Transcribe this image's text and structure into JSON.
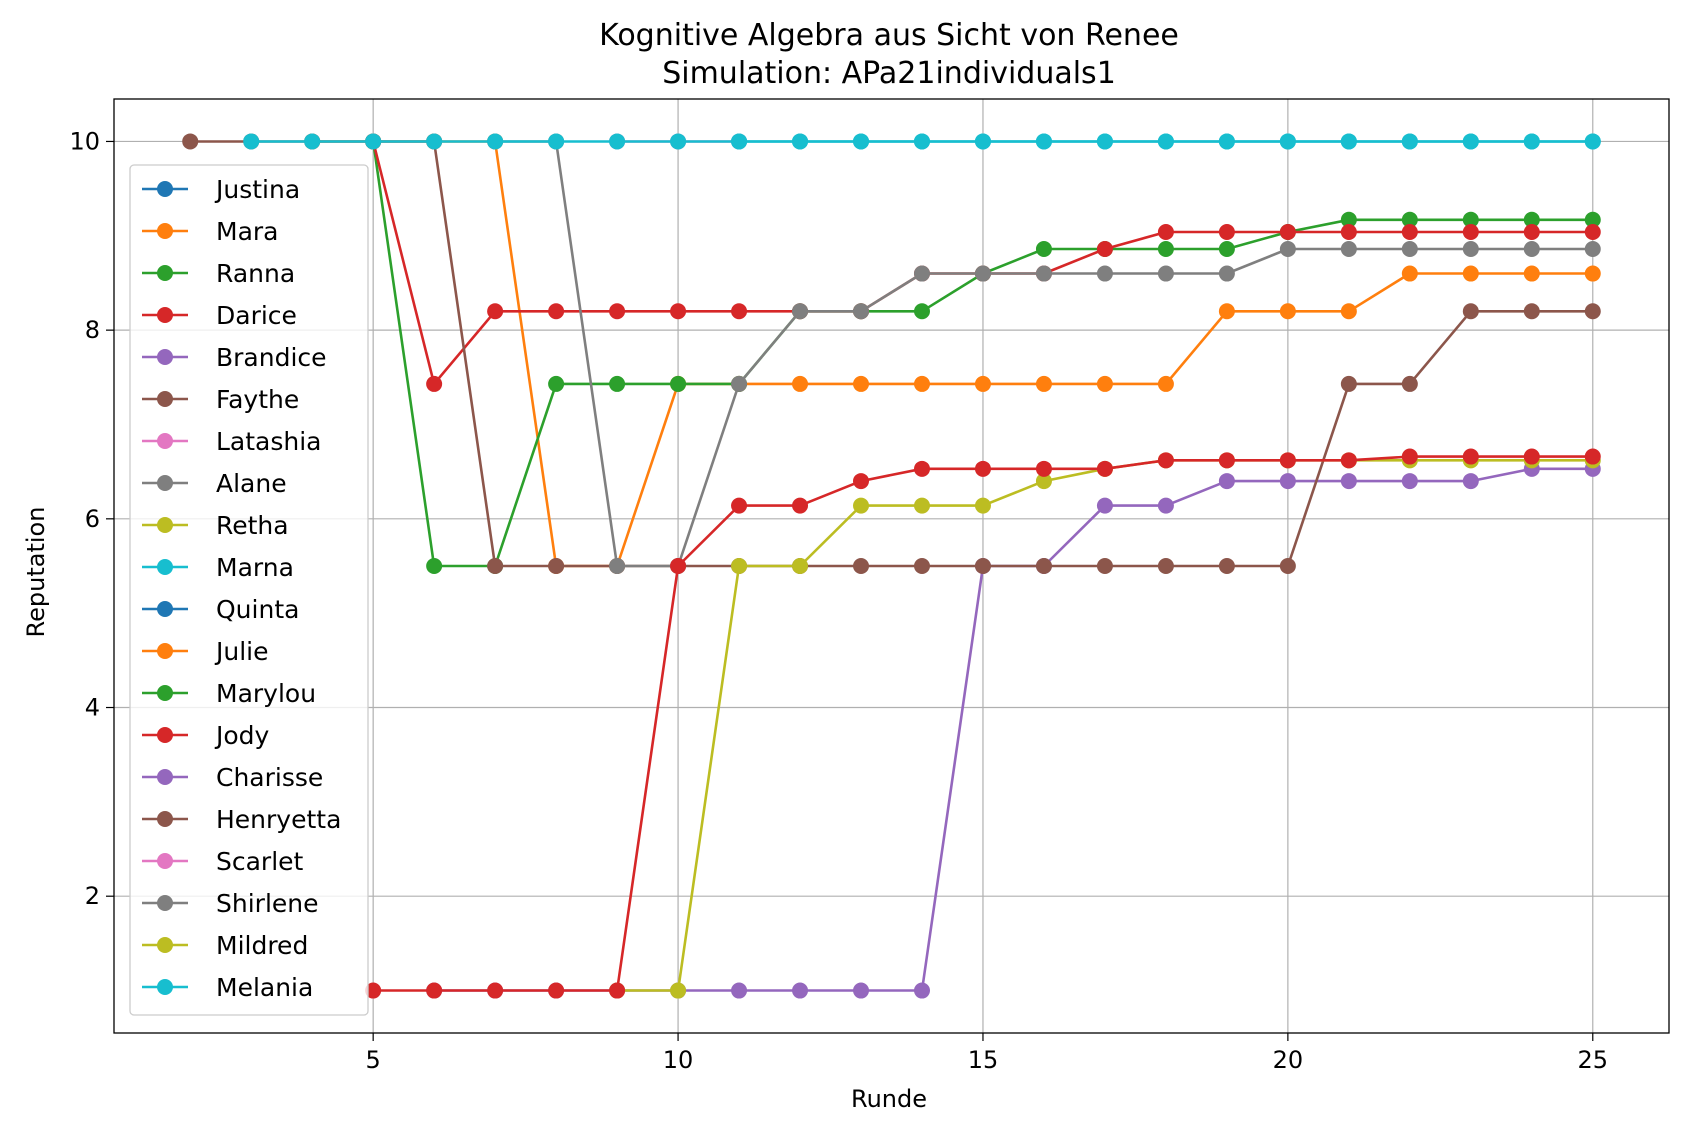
{
  "chart_data": {
    "type": "line",
    "title": "Kognitive Algebra aus Sicht von Renee",
    "subtitle": "Simulation: APa21individuals1",
    "xlabel": "Runde",
    "ylabel": "Reputation",
    "xlim": [
      0.75,
      26.25
    ],
    "ylim": [
      0.55,
      10.45
    ],
    "xticks": [
      5,
      10,
      15,
      20,
      25
    ],
    "yticks": [
      2,
      4,
      6,
      8,
      10
    ],
    "grid": true,
    "legend_position": "left",
    "series": [
      {
        "name": "Justina",
        "color": "#1f77b4",
        "x": [],
        "y": []
      },
      {
        "name": "Mara",
        "color": "#ff7f0e",
        "x": [
          4,
          5,
          6,
          7,
          8,
          9,
          10,
          11,
          12,
          13,
          14,
          15,
          16,
          17,
          18,
          19,
          20,
          21,
          22,
          23,
          24,
          25
        ],
        "y": [
          10,
          10,
          10,
          10,
          5.5,
          5.5,
          7.43,
          7.43,
          7.43,
          7.43,
          7.43,
          7.43,
          7.43,
          7.43,
          7.43,
          8.2,
          8.2,
          8.2,
          8.6,
          8.6,
          8.6,
          8.6
        ]
      },
      {
        "name": "Ranna",
        "color": "#2ca02c",
        "x": [
          5,
          6,
          7,
          8,
          9,
          10,
          11,
          12,
          13,
          14,
          15,
          16,
          17,
          18,
          19,
          20,
          21,
          22,
          23,
          24,
          25
        ],
        "y": [
          10,
          5.5,
          5.5,
          7.43,
          7.43,
          7.43,
          7.43,
          8.2,
          8.2,
          8.2,
          8.6,
          8.86,
          8.86,
          8.86,
          8.86,
          9.04,
          9.17,
          9.17,
          9.17,
          9.17,
          9.17
        ]
      },
      {
        "name": "Darice",
        "color": "#d62728",
        "x": [
          5,
          6,
          7,
          8,
          9,
          10,
          11,
          12,
          13,
          14,
          15,
          16,
          17,
          18,
          19,
          20,
          21,
          22,
          23,
          24,
          25
        ],
        "y": [
          10,
          7.43,
          8.2,
          8.2,
          8.2,
          8.2,
          8.2,
          8.2,
          8.2,
          8.6,
          8.6,
          8.6,
          8.86,
          9.04,
          9.04,
          9.04,
          9.04,
          9.04,
          9.04,
          9.04,
          9.04
        ]
      },
      {
        "name": "Brandice",
        "color": "#9467bd",
        "x": [
          6,
          7,
          8,
          9,
          10,
          11,
          12,
          13,
          14,
          15,
          16,
          17,
          18,
          19,
          20,
          21,
          22,
          23,
          24,
          25
        ],
        "y": [
          1,
          1,
          1,
          1,
          1,
          1,
          1,
          1,
          1,
          5.5,
          5.5,
          6.14,
          6.14,
          6.4,
          6.4,
          6.4,
          6.4,
          6.4,
          6.53,
          6.53
        ]
      },
      {
        "name": "Faythe",
        "color": "#8c564b",
        "x": [
          2,
          3,
          4,
          5,
          6,
          7,
          8,
          9,
          10,
          11,
          12,
          13,
          14,
          15,
          16,
          17,
          18,
          19,
          20,
          21,
          22,
          23,
          24,
          25
        ],
        "y": [
          10,
          10,
          10,
          10,
          10,
          5.5,
          5.5,
          5.5,
          5.5,
          5.5,
          5.5,
          5.5,
          5.5,
          5.5,
          5.5,
          5.5,
          5.5,
          5.5,
          5.5,
          7.43,
          7.43,
          8.2,
          8.2,
          8.2
        ]
      },
      {
        "name": "Latashia",
        "color": "#e377c2",
        "x": [
          9,
          10,
          11
        ],
        "y": [
          10,
          10,
          10
        ]
      },
      {
        "name": "Alane",
        "color": "#7f7f7f",
        "x": [
          7,
          8,
          9,
          10,
          11,
          12,
          13,
          14,
          15,
          16,
          17,
          18,
          19,
          20,
          21,
          22,
          23,
          24,
          25
        ],
        "y": [
          10,
          10,
          5.5,
          5.5,
          7.43,
          8.2,
          8.2,
          8.6,
          8.6,
          8.6,
          8.6,
          8.6,
          8.6,
          8.86,
          8.86,
          8.86,
          8.86,
          8.86,
          8.86
        ]
      },
      {
        "name": "Retha",
        "color": "#bcbd22",
        "x": [
          9,
          10,
          11,
          12,
          13,
          14,
          15,
          16,
          17,
          18,
          19,
          20,
          21,
          22,
          23,
          24,
          25
        ],
        "y": [
          1,
          1,
          5.5,
          5.5,
          6.14,
          6.14,
          6.14,
          6.4,
          6.53,
          6.62,
          6.62,
          6.62,
          6.62,
          6.62,
          6.62,
          6.62,
          6.62
        ]
      },
      {
        "name": "Marna",
        "color": "#17becf",
        "x": [
          3,
          4,
          5,
          6,
          7,
          8,
          9,
          10,
          11,
          12,
          13,
          14,
          15,
          16,
          17,
          18,
          19,
          20,
          21,
          22,
          23,
          24,
          25
        ],
        "y": [
          10,
          10,
          10,
          10,
          10,
          10,
          10,
          10,
          10,
          10,
          10,
          10,
          10,
          10,
          10,
          10,
          10,
          10,
          10,
          10,
          10,
          10,
          10
        ]
      },
      {
        "name": "Quinta",
        "color": "#1f77b4",
        "x": [],
        "y": []
      },
      {
        "name": "Julie",
        "color": "#ff7f0e",
        "x": [],
        "y": []
      },
      {
        "name": "Marylou",
        "color": "#2ca02c",
        "x": [],
        "y": []
      },
      {
        "name": "Jody",
        "color": "#d62728",
        "x": [
          5,
          6,
          7,
          8,
          9,
          10,
          11,
          12,
          13,
          14,
          15,
          16,
          17,
          18,
          19,
          20,
          21,
          22,
          23,
          24,
          25
        ],
        "y": [
          1,
          1,
          1,
          1,
          1,
          5.5,
          6.14,
          6.14,
          6.4,
          6.53,
          6.53,
          6.53,
          6.53,
          6.62,
          6.62,
          6.62,
          6.62,
          6.66,
          6.66,
          6.66,
          6.66
        ]
      },
      {
        "name": "Charisse",
        "color": "#9467bd",
        "x": [],
        "y": []
      },
      {
        "name": "Henryetta",
        "color": "#8c564b",
        "x": [],
        "y": []
      },
      {
        "name": "Scarlet",
        "color": "#e377c2",
        "x": [],
        "y": []
      },
      {
        "name": "Shirlene",
        "color": "#7f7f7f",
        "x": [],
        "y": []
      },
      {
        "name": "Mildred",
        "color": "#bcbd22",
        "x": [],
        "y": []
      },
      {
        "name": "Melania",
        "color": "#17becf",
        "x": [
          11,
          12,
          13,
          14,
          15,
          16,
          17,
          18,
          19,
          20,
          21,
          22,
          23,
          24,
          25
        ],
        "y": [
          10,
          10,
          10,
          10,
          10,
          10,
          10,
          10,
          10,
          10,
          10,
          10,
          10,
          10,
          10
        ]
      }
    ]
  }
}
